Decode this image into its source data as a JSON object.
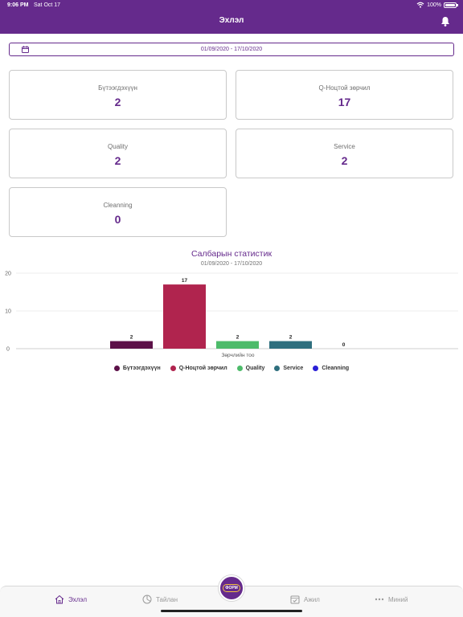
{
  "status_bar": {
    "time": "9:06 PM",
    "date": "Sat Oct 17",
    "battery": "100%"
  },
  "header": {
    "title": "Эхлэл"
  },
  "date_range": {
    "text": "01/09/2020 - 17/10/2020"
  },
  "cards": [
    {
      "label": "Бүтээгдэхүүн",
      "value": "2"
    },
    {
      "label": "Q-Ноцтой зөрчил",
      "value": "17"
    },
    {
      "label": "Quality",
      "value": "2"
    },
    {
      "label": "Service",
      "value": "2"
    },
    {
      "label": "Cleanning",
      "value": "0"
    }
  ],
  "chart": {
    "title": "Салбарын статистик",
    "subtitle": "01/09/2020 - 17/10/2020"
  },
  "chart_data": {
    "type": "bar",
    "xlabel": "Зөрчлийн тоо",
    "ylabel": "",
    "ylim": [
      0,
      20
    ],
    "yticks": [
      0,
      10,
      20
    ],
    "grid": true,
    "legend_position": "bottom",
    "series": [
      {
        "name": "Бүтээгдэхүүн",
        "value": 2,
        "color": "#5c1148"
      },
      {
        "name": "Q-Ноцтой зөрчил",
        "value": 17,
        "color": "#b0244e"
      },
      {
        "name": "Quality",
        "value": 2,
        "color": "#4dbb6a"
      },
      {
        "name": "Service",
        "value": 2,
        "color": "#2f6f7e"
      },
      {
        "name": "Cleanning",
        "value": 0,
        "color": "#2a1fd6"
      }
    ]
  },
  "tabbar": {
    "home": "Эхлэл",
    "report": "Тайлан",
    "center": "ФОРМ",
    "work": "Ажил",
    "mine": "Миний"
  }
}
